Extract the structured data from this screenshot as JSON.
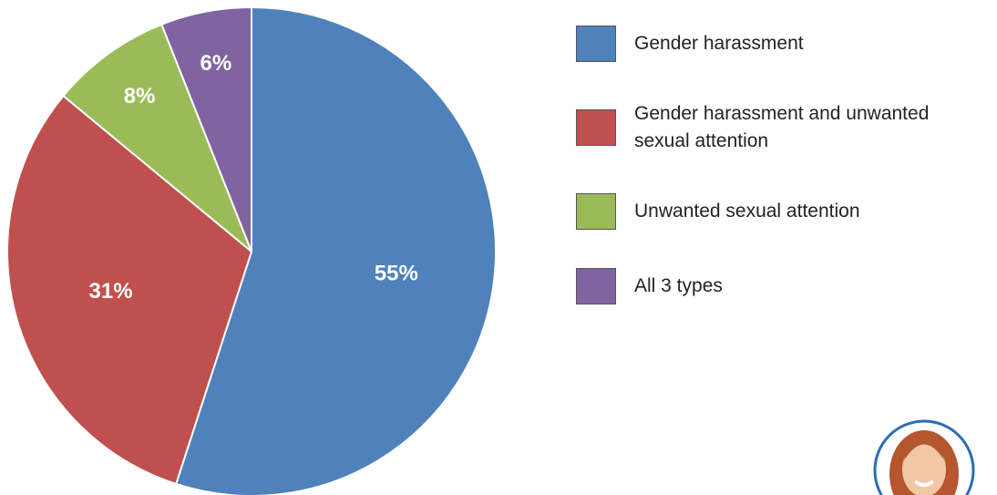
{
  "chart_data": {
    "type": "pie",
    "categories": [
      "Gender harassment",
      "Gender harassment and unwanted sexual attention",
      "Unwanted sexual attention",
      "All 3 types"
    ],
    "values": [
      55,
      31,
      8,
      6
    ],
    "value_labels": [
      "55%",
      "31%",
      "8%",
      "6%"
    ],
    "colors": [
      "#4f81bd",
      "#c0504d",
      "#9bbb59",
      "#8064a2"
    ]
  }
}
